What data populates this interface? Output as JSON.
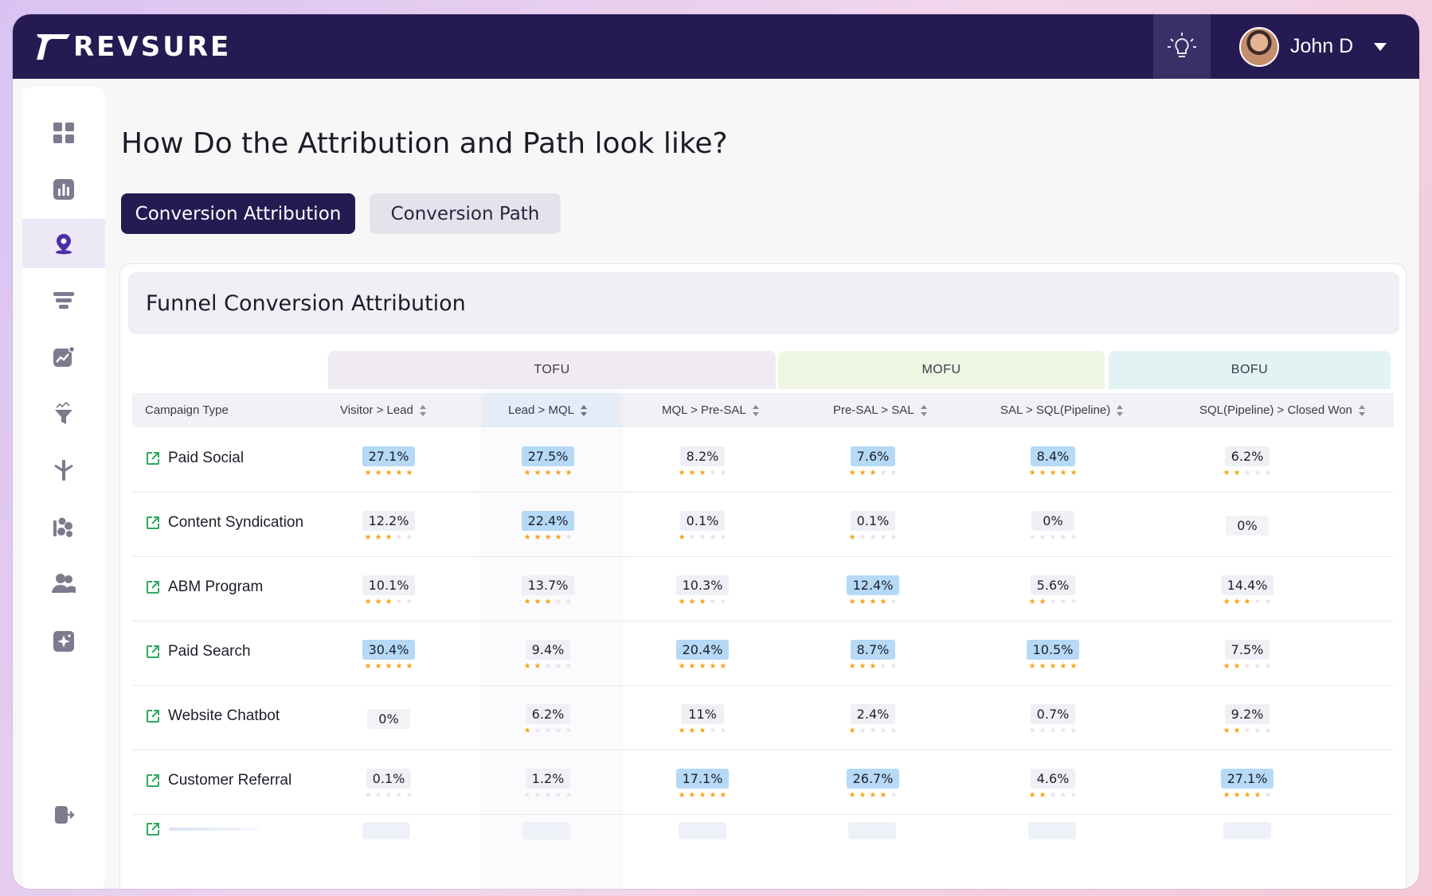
{
  "app": {
    "brand": "REVSURE",
    "user_name": "John D"
  },
  "sidebar": {
    "items": [
      {
        "icon": "grid-icon"
      },
      {
        "icon": "bar-chart-icon"
      },
      {
        "icon": "location-pin-icon",
        "active": true
      },
      {
        "icon": "funnel-stack-icon"
      },
      {
        "icon": "trend-chart-icon"
      },
      {
        "icon": "filter-sparkle-icon"
      },
      {
        "icon": "merge-arrow-icon"
      },
      {
        "icon": "shapes-icon"
      },
      {
        "icon": "users-icon"
      },
      {
        "icon": "ai-sparkle-icon"
      },
      {
        "icon": "logout-icon"
      }
    ]
  },
  "page": {
    "title": "How Do the Attribution and Path look like?"
  },
  "tabs": [
    {
      "label": "Conversion Attribution",
      "active": true
    },
    {
      "label": "Conversion Path",
      "active": false
    }
  ],
  "card": {
    "title": "Funnel Conversion Attribution"
  },
  "groups": {
    "tofu": "TOFU",
    "mofu": "MOFU",
    "bofu": "BOFU"
  },
  "columns": [
    "Campaign Type",
    "Visitor > Lead",
    "Lead > MQL",
    "MQL > Pre-SAL",
    "Pre-SAL > SAL",
    "SAL > SQL(Pipeline)",
    "SQL(Pipeline) > Closed Won"
  ],
  "rows": [
    {
      "campaign": "Paid Social",
      "cells": [
        {
          "v": "27.1%",
          "s": 5,
          "h": true
        },
        {
          "v": "27.5%",
          "s": 5,
          "h": true
        },
        {
          "v": "8.2%",
          "s": 3,
          "h": false
        },
        {
          "v": "7.6%",
          "s": 3,
          "h": true
        },
        {
          "v": "8.4%",
          "s": 5,
          "h": true
        },
        {
          "v": "6.2%",
          "s": 2,
          "h": false
        }
      ]
    },
    {
      "campaign": "Content Syndication",
      "cells": [
        {
          "v": "12.2%",
          "s": 3,
          "h": false
        },
        {
          "v": "22.4%",
          "s": 4,
          "h": true
        },
        {
          "v": "0.1%",
          "s": 1,
          "h": false
        },
        {
          "v": "0.1%",
          "s": 1,
          "h": false
        },
        {
          "v": "0%",
          "s": 0,
          "h": false
        },
        {
          "v": "0%",
          "s": -1,
          "h": false
        }
      ]
    },
    {
      "campaign": "ABM Program",
      "cells": [
        {
          "v": "10.1%",
          "s": 3,
          "h": false
        },
        {
          "v": "13.7%",
          "s": 3,
          "h": false
        },
        {
          "v": "10.3%",
          "s": 3,
          "h": false
        },
        {
          "v": "12.4%",
          "s": 4,
          "h": true
        },
        {
          "v": "5.6%",
          "s": 2,
          "h": false
        },
        {
          "v": "14.4%",
          "s": 3,
          "h": false
        }
      ]
    },
    {
      "campaign": "Paid Search",
      "cells": [
        {
          "v": "30.4%",
          "s": 5,
          "h": true
        },
        {
          "v": "9.4%",
          "s": 2,
          "h": false
        },
        {
          "v": "20.4%",
          "s": 5,
          "h": true
        },
        {
          "v": "8.7%",
          "s": 3,
          "h": true
        },
        {
          "v": "10.5%",
          "s": 5,
          "h": true
        },
        {
          "v": "7.5%",
          "s": 2,
          "h": false
        }
      ]
    },
    {
      "campaign": "Website Chatbot",
      "cells": [
        {
          "v": "0%",
          "s": -1,
          "h": false
        },
        {
          "v": "6.2%",
          "s": 1,
          "h": false
        },
        {
          "v": "11%",
          "s": 3,
          "h": false
        },
        {
          "v": "2.4%",
          "s": 1,
          "h": false
        },
        {
          "v": "0.7%",
          "s": 0,
          "h": false
        },
        {
          "v": "9.2%",
          "s": 2,
          "h": false
        }
      ]
    },
    {
      "campaign": "Customer Referral",
      "cells": [
        {
          "v": "0.1%",
          "s": 0,
          "h": false
        },
        {
          "v": "1.2%",
          "s": 0,
          "h": false
        },
        {
          "v": "17.1%",
          "s": 5,
          "h": true
        },
        {
          "v": "26.7%",
          "s": 4,
          "h": true
        },
        {
          "v": "4.6%",
          "s": 2,
          "h": false
        },
        {
          "v": "27.1%",
          "s": 4,
          "h": true
        }
      ]
    }
  ],
  "colors": {
    "brand": "#261a52",
    "highlight": "#b5d9f6",
    "star": "#f4a51c",
    "tofu": "#f0ebf3",
    "mofu": "#eef6e2",
    "bofu": "#e2f3f3",
    "link": "#2daa5a"
  }
}
